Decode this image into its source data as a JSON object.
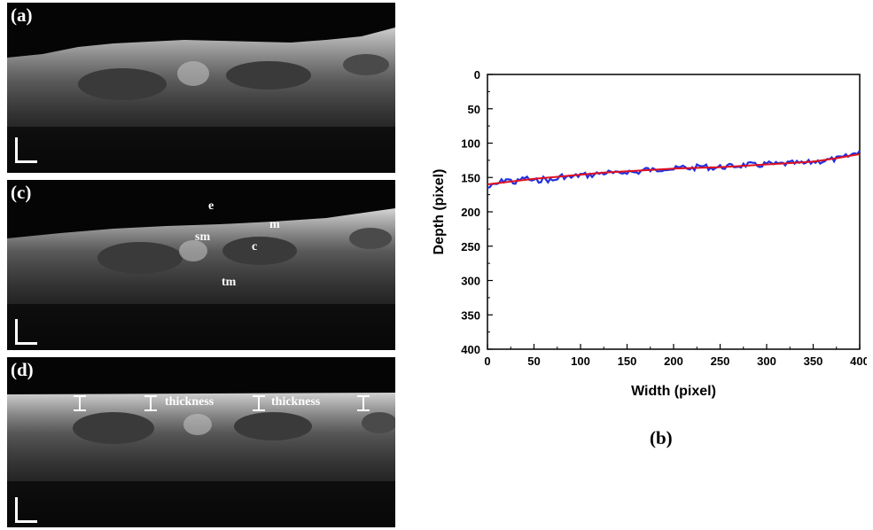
{
  "panels": {
    "a": {
      "label": "(a)"
    },
    "c": {
      "label": "(c)",
      "layers": {
        "e": "e",
        "m": "m",
        "sm": "sm",
        "c": "c",
        "tm": "tm"
      }
    },
    "d": {
      "label": "(d)",
      "thickness_1": "thickness",
      "thickness_2": "thickness"
    }
  },
  "caption_b": "(b)",
  "colors": {
    "raw": "#1f2fe0",
    "fit": "#e01020",
    "image_bg": "#050505",
    "tissue": "#bdbdbd"
  },
  "chart_data": {
    "type": "line",
    "title": "",
    "xlabel": "Width (pixel)",
    "ylabel": "Depth (pixel)",
    "xlim": [
      0,
      400
    ],
    "ylim": [
      0,
      400
    ],
    "y_inverted": true,
    "xticks": [
      0,
      50,
      100,
      150,
      200,
      250,
      300,
      350,
      400
    ],
    "yticks": [
      0,
      50,
      100,
      150,
      200,
      250,
      300,
      350,
      400
    ],
    "grid": false,
    "legend": "none",
    "series": [
      {
        "style": "noisy",
        "x": [
          0,
          10,
          20,
          30,
          40,
          50,
          60,
          70,
          80,
          90,
          100,
          110,
          120,
          130,
          140,
          150,
          160,
          170,
          180,
          190,
          200,
          210,
          220,
          230,
          240,
          250,
          260,
          270,
          280,
          290,
          300,
          310,
          320,
          330,
          340,
          350,
          360,
          370,
          380,
          390,
          400
        ],
        "y": [
          165,
          160,
          152,
          158,
          150,
          156,
          152,
          155,
          148,
          150,
          146,
          147,
          144,
          143,
          145,
          141,
          143,
          138,
          140,
          136,
          138,
          135,
          137,
          133,
          136,
          135,
          134,
          133,
          131,
          133,
          130,
          131,
          130,
          129,
          130,
          127,
          126,
          124,
          122,
          118,
          111
        ]
      },
      {
        "style": "fit",
        "x": [
          0,
          25,
          50,
          75,
          100,
          125,
          150,
          175,
          200,
          225,
          250,
          275,
          300,
          325,
          350,
          375,
          400
        ],
        "y": [
          160,
          156,
          152,
          149,
          146,
          143,
          141,
          139,
          137,
          136,
          135,
          133,
          131,
          129,
          127,
          122,
          116
        ]
      }
    ]
  }
}
